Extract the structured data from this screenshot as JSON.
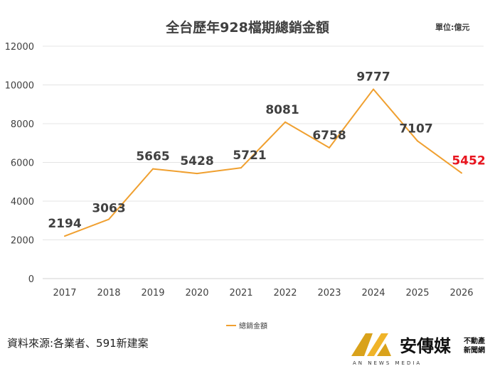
{
  "chart_data": {
    "type": "line",
    "title": "全台歷年928檔期總銷金額",
    "unit": "單位:億元",
    "categories": [
      "2017",
      "2018",
      "2019",
      "2020",
      "2021",
      "2022",
      "2023",
      "2024",
      "2025",
      "2026"
    ],
    "series": [
      {
        "name": "總銷金額",
        "values": [
          2194,
          3063,
          5665,
          5428,
          5721,
          8081,
          6758,
          9777,
          7107,
          5452
        ],
        "color": "#f0a030"
      }
    ],
    "data_labels": [
      "2194",
      "3063",
      "5665",
      "5428",
      "5721",
      "8081",
      "6758",
      "9777",
      "7107",
      "5452"
    ],
    "highlight_color": "#e8141e",
    "highlight_index": 9,
    "yticks": [
      "0",
      "2000",
      "4000",
      "6000",
      "8000",
      "10000",
      "12000"
    ],
    "ylim": [
      0,
      12000
    ],
    "grid": true,
    "legend": "bottom"
  },
  "footer": {
    "source": "資料來源:各業者、591新建案"
  },
  "logo": {
    "name": "安傳媒",
    "tagline_1": "不動產",
    "tagline_2": "新聞網",
    "subtitle": "AN NEWS MEDIA"
  }
}
